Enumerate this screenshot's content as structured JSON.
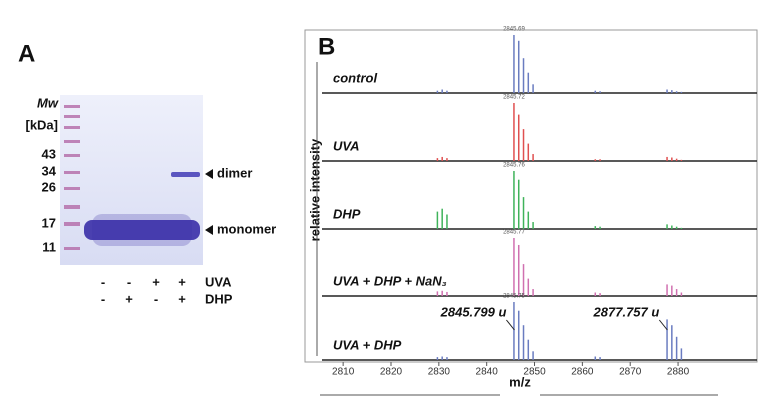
{
  "panel_a": {
    "label": "A",
    "mw_title": "Mw",
    "mw_unit": "[kDa]",
    "mw_markers": [
      "43",
      "34",
      "26",
      "17",
      "11"
    ],
    "bands": [
      "dimer",
      "monomer"
    ],
    "conditions": [
      "UVA",
      "DHP"
    ],
    "uva_signs": [
      "-",
      "-",
      "+",
      "+"
    ],
    "dhp_signs": [
      "-",
      "+",
      "-",
      "+"
    ]
  },
  "chart_data": {
    "type": "spectrum",
    "panel_label": "B",
    "xlabel": "m/z",
    "ylabel": "relative intensity",
    "xlim": [
      2803.7,
      2896.5
    ],
    "xticks": [
      2810,
      2820,
      2830,
      2840,
      2850,
      2860,
      2870,
      2880
    ],
    "ylim": [
      0,
      100
    ],
    "x": [
      2829.7,
      2830.7,
      2831.7,
      2845.7,
      2846.7,
      2847.7,
      2848.7,
      2849.7,
      2862.7,
      2863.7,
      2877.7,
      2878.7,
      2879.7,
      2880.7
    ],
    "series": [
      {
        "name": "control",
        "color": "#6a7cc0",
        "peak_label": "2845.69",
        "values": [
          4,
          6,
          4,
          100,
          90,
          60,
          35,
          15,
          4,
          3,
          6,
          5,
          3,
          2
        ]
      },
      {
        "name": "UVA",
        "color": "#e05050",
        "peak_label": "2845.72",
        "values": [
          5,
          7,
          5,
          100,
          80,
          55,
          30,
          12,
          3,
          3,
          7,
          6,
          4,
          2
        ]
      },
      {
        "name": "DHP",
        "color": "#3fb35a",
        "peak_label": "2845.76",
        "values": [
          30,
          35,
          25,
          100,
          85,
          55,
          30,
          12,
          5,
          4,
          8,
          6,
          4,
          2
        ]
      },
      {
        "name": "UVA + DHP + NaN₃",
        "color": "#d070b0",
        "peak_label": "2845.77",
        "values": [
          8,
          9,
          7,
          100,
          88,
          55,
          30,
          12,
          6,
          5,
          20,
          18,
          12,
          6
        ]
      },
      {
        "name": "UVA + DHP",
        "color": "#6a7cc0",
        "peak_label": "2845.75",
        "values": [
          5,
          6,
          5,
          100,
          85,
          60,
          35,
          15,
          6,
          5,
          70,
          60,
          40,
          20
        ]
      }
    ],
    "annotations": [
      {
        "text": "2845.799 u",
        "x": 2845.8
      },
      {
        "text": "2877.757 u",
        "x": 2877.76
      }
    ]
  }
}
